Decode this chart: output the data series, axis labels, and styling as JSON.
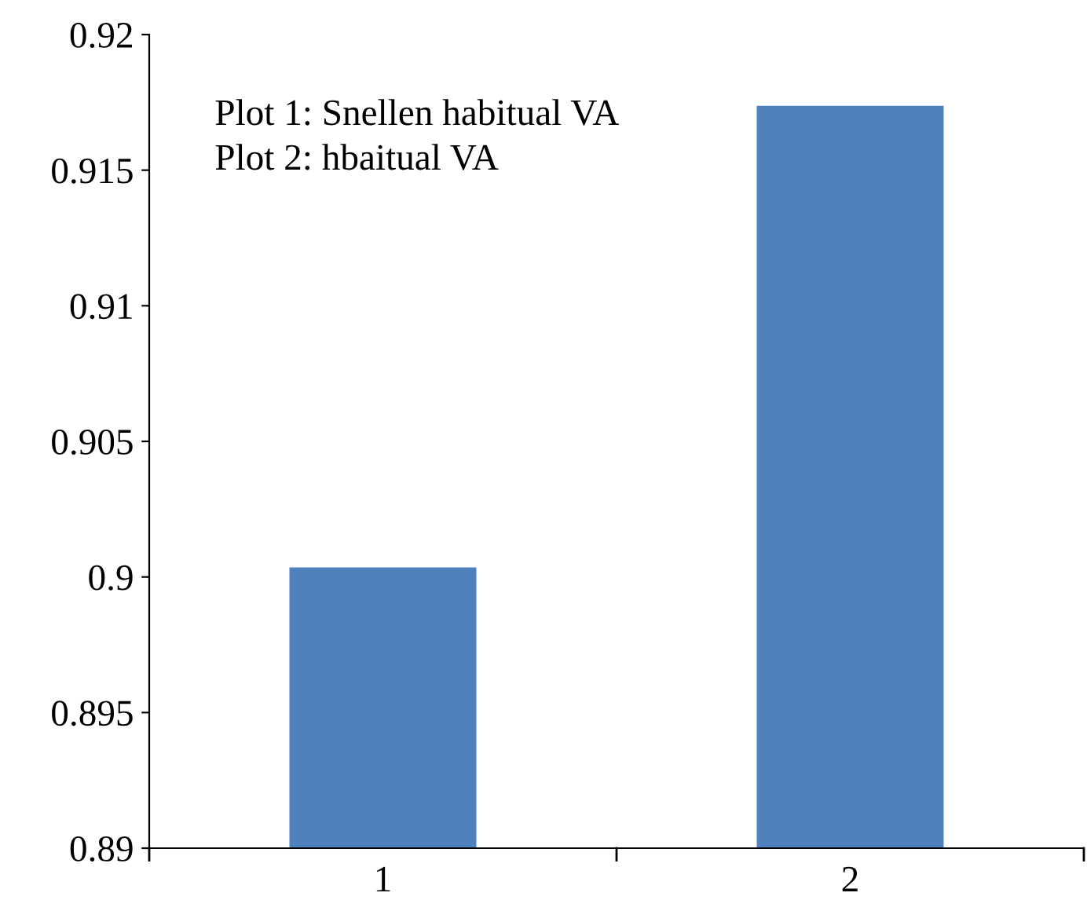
{
  "chart_data": {
    "type": "bar",
    "categories": [
      "1",
      "2"
    ],
    "values": [
      0.90035,
      0.91737
    ],
    "color": "#4f81bd",
    "ylim": [
      0.89,
      0.92
    ],
    "yticks": [
      0.89,
      0.895,
      0.9,
      0.905,
      0.91,
      0.915,
      0.92
    ],
    "grid": false,
    "annotations": [
      "Plot 1: Snellen habitual VA",
      "Plot 2: hbaitual VA"
    ]
  }
}
